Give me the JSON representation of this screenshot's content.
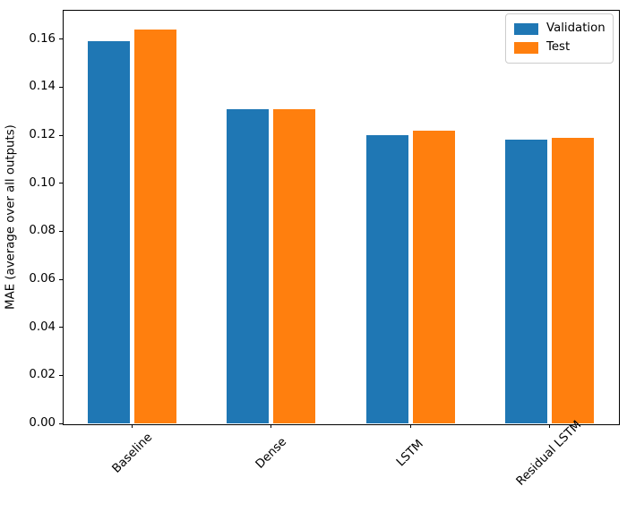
{
  "chart_data": {
    "type": "bar",
    "title": "",
    "xlabel": "",
    "ylabel": "MAE (average over all outputs)",
    "categories": [
      "Baseline",
      "Dense",
      "LSTM",
      "Residual LSTM"
    ],
    "series": [
      {
        "name": "Validation",
        "color": "#1f77b4",
        "values": [
          0.159,
          0.131,
          0.12,
          0.118
        ]
      },
      {
        "name": "Test",
        "color": "#ff7f0e",
        "values": [
          0.164,
          0.131,
          0.122,
          0.119
        ]
      }
    ],
    "ylim": [
      0,
      0.1722
    ],
    "yticks": [
      0.0,
      0.02,
      0.04,
      0.06,
      0.08,
      0.1,
      0.12,
      0.14,
      0.16
    ],
    "ytick_labels": [
      "0.00",
      "0.02",
      "0.04",
      "0.06",
      "0.08",
      "0.10",
      "0.12",
      "0.14",
      "0.16"
    ],
    "xtick_rotation_deg": 45,
    "legend": {
      "position": "upper right",
      "entries": [
        "Validation",
        "Test"
      ]
    },
    "grid": false,
    "colors": {
      "axis": "#000000",
      "text": "#000000",
      "legend_border": "#cccccc",
      "background": "#ffffff"
    }
  }
}
